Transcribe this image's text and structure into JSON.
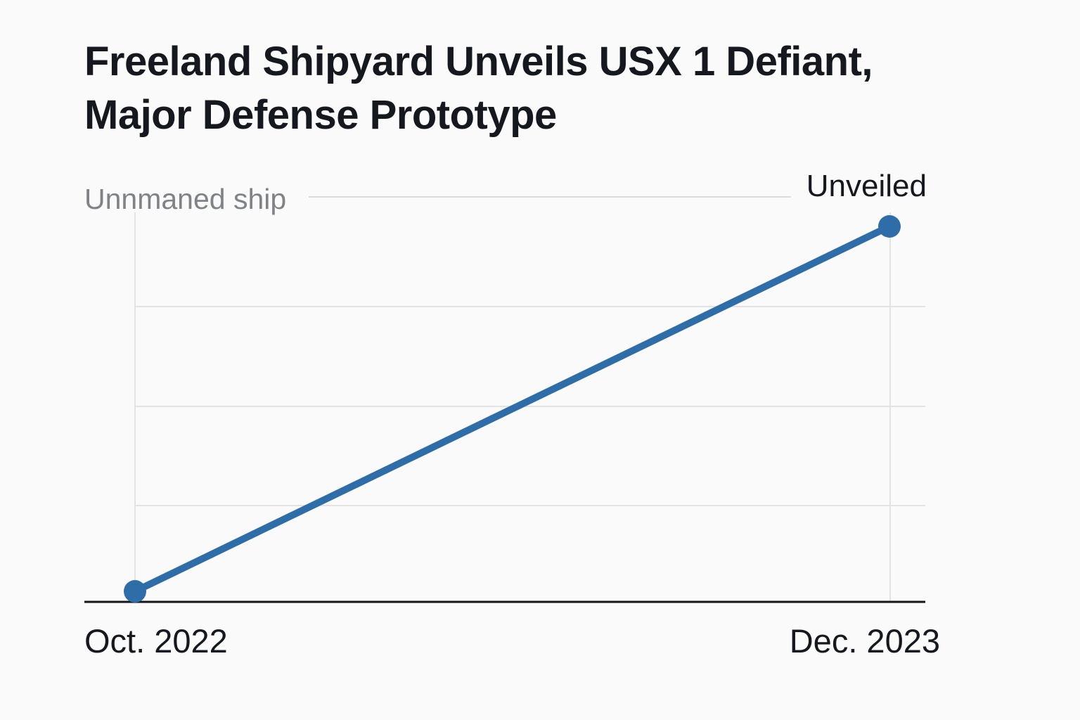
{
  "title": {
    "line1": "Freeland Shipyard Unveils USX 1 Defiant,",
    "line2": "Major Defense Prototype",
    "full": "Freeland Shipyard Unveils USX 1 Defiant, Major Defense Prototype"
  },
  "chart": {
    "series_label": "Unnmaned ship",
    "annotation": "Unveiled",
    "x_axis": {
      "start_label": "Oct. 2022",
      "end_label": "Dec. 2023"
    }
  },
  "colors": {
    "background": "#fafafa",
    "line": "#2f6da8",
    "grid": "#e3e3e3",
    "rule": "#dcdcdc",
    "axis": "#141414",
    "text_dark": "#15181e",
    "text_gray": "#7f8287"
  },
  "chart_data": {
    "type": "line",
    "title": "Freeland Shipyard Unveils USX 1 Defiant, Major Defense Prototype",
    "x": [
      "Oct. 2022",
      "Dec. 2023"
    ],
    "series": [
      {
        "name": "Unnmaned ship",
        "values": [
          0,
          1
        ]
      }
    ],
    "point_annotations": [
      null,
      "Unveiled"
    ],
    "ylim": [
      0,
      1
    ],
    "xlabel": "",
    "ylabel": "Unnmaned ship",
    "grid": true,
    "legend_position": "none",
    "markers": "circle-endpoints"
  }
}
